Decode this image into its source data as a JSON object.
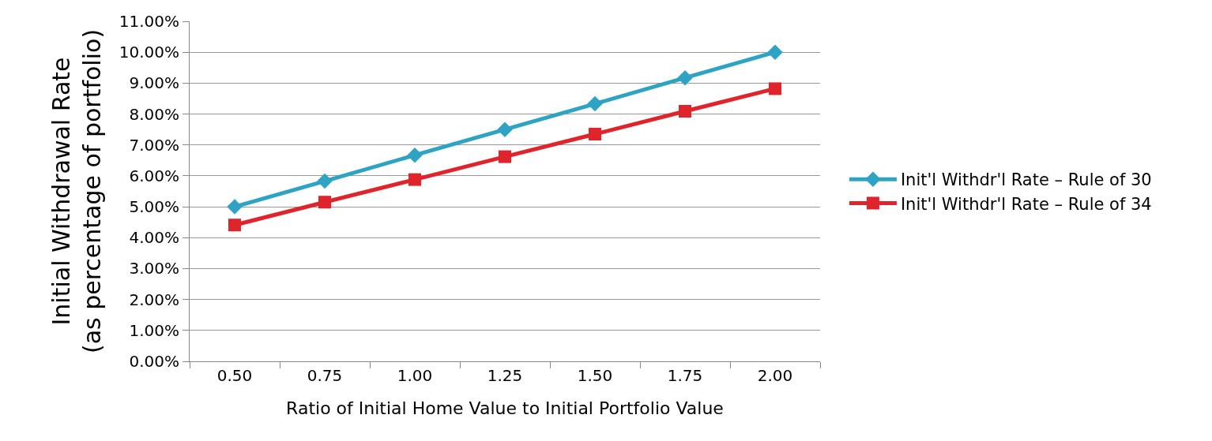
{
  "chart_data": {
    "type": "line",
    "xlabel": "Ratio of Initial Home Value to Initial Portfolio Value",
    "ylabel": "Initial Withdrawal Rate\n(as percentage of portfolio)",
    "categories": [
      "0.50",
      "0.75",
      "1.00",
      "1.25",
      "1.50",
      "1.75",
      "2.00"
    ],
    "series": [
      {
        "name": "Init'l Withdr'l Rate – Rule of 30",
        "color": "#2ea3c4",
        "marker": "diamond",
        "values": [
          5.0,
          5.83,
          6.67,
          7.5,
          8.33,
          9.17,
          10.0
        ]
      },
      {
        "name": "Init'l Withdr'l Rate – Rule of 34",
        "color": "#e0242c",
        "marker": "square",
        "values": [
          4.41,
          5.15,
          5.88,
          6.62,
          7.35,
          8.09,
          8.82
        ]
      }
    ],
    "ylim": [
      0,
      11
    ],
    "yticks": [
      {
        "value": 0,
        "label": "0.00%"
      },
      {
        "value": 1,
        "label": "1.00%"
      },
      {
        "value": 2,
        "label": "2.00%"
      },
      {
        "value": 3,
        "label": "3.00%"
      },
      {
        "value": 4,
        "label": "4.00%"
      },
      {
        "value": 5,
        "label": "5.00%"
      },
      {
        "value": 6,
        "label": "6.00%"
      },
      {
        "value": 7,
        "label": "7.00%"
      },
      {
        "value": 8,
        "label": "8.00%"
      },
      {
        "value": 9,
        "label": "9.00%"
      },
      {
        "value": 10,
        "label": "10.00%"
      },
      {
        "value": 11,
        "label": "11.00%"
      }
    ],
    "grid": "y",
    "legend": "right",
    "line_style": "solid"
  }
}
